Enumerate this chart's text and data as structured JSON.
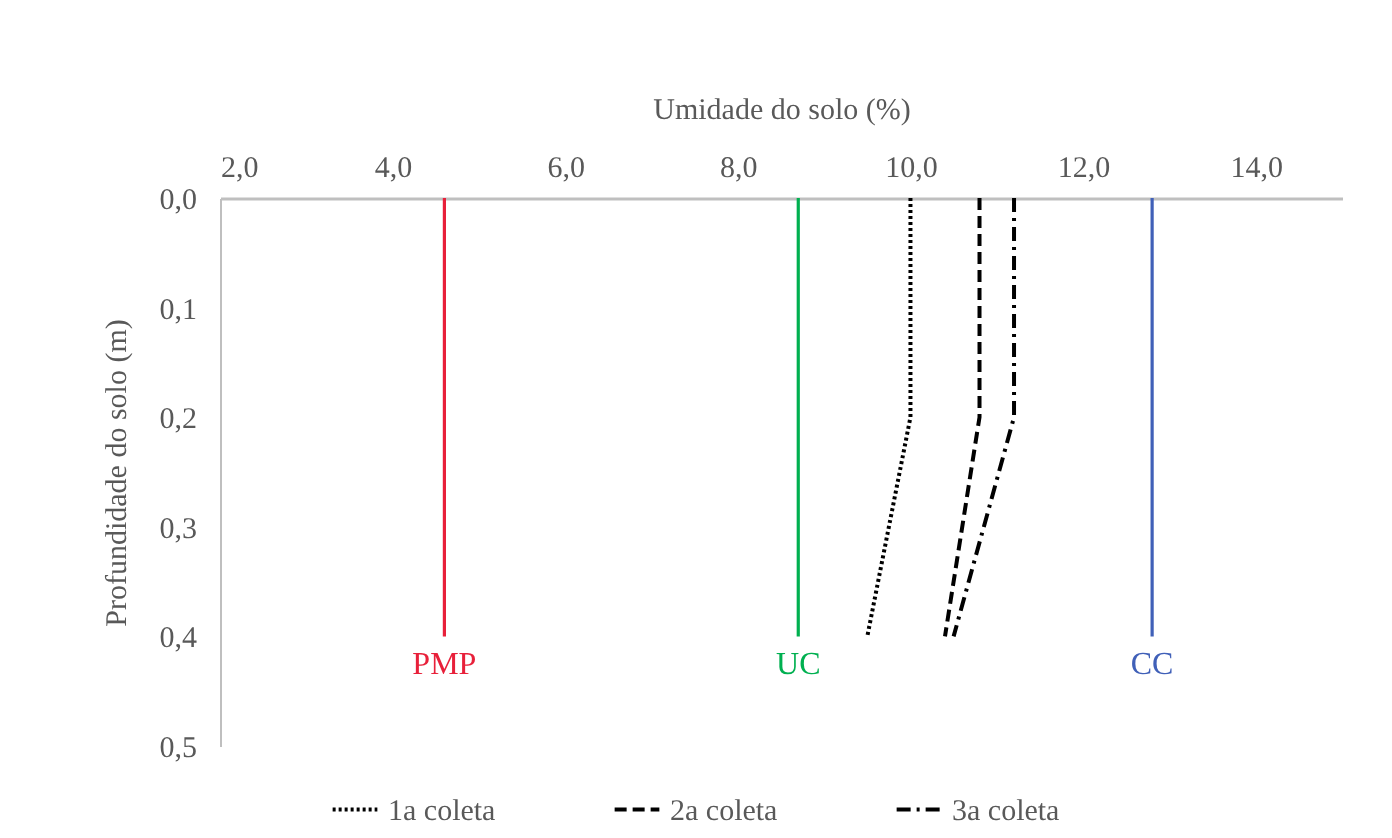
{
  "chart_data": {
    "type": "line",
    "xlabel": "Umidade do solo (%)",
    "ylabel": "Profundidade do solo (m)",
    "xlim": [
      2,
      15
    ],
    "xticks": [
      {
        "value": 2,
        "label": "2,0"
      },
      {
        "value": 4,
        "label": "4,0"
      },
      {
        "value": 6,
        "label": "6,0"
      },
      {
        "value": 8,
        "label": "8,0"
      },
      {
        "value": 10,
        "label": "10,0"
      },
      {
        "value": 12,
        "label": "12,0"
      },
      {
        "value": 14,
        "label": "14,0"
      }
    ],
    "ylim": [
      0.5,
      0
    ],
    "yticks": [
      {
        "value": 0,
        "label": "0,0"
      },
      {
        "value": 0.1,
        "label": "0,1"
      },
      {
        "value": 0.2,
        "label": "0,2"
      },
      {
        "value": 0.3,
        "label": "0,3"
      },
      {
        "value": 0.4,
        "label": "0,4"
      },
      {
        "value": 0.5,
        "label": "0,5"
      }
    ],
    "series": [
      {
        "name": "PMP",
        "color": "#e8203a",
        "line_style": "solid",
        "x": [
          4.6,
          4.6
        ],
        "values": [
          0,
          0.4
        ]
      },
      {
        "name": "UC",
        "color": "#00b050",
        "line_style": "solid",
        "x": [
          8.7,
          8.7
        ],
        "values": [
          0,
          0.4
        ]
      },
      {
        "name": "CC",
        "color": "#4060b8",
        "line_style": "solid",
        "x": [
          12.8,
          12.8
        ],
        "values": [
          0,
          0.4
        ]
      },
      {
        "name": "1a coleta",
        "color": "#000000",
        "line_style": "dotted",
        "x": [
          10.0,
          10.0,
          9.5
        ],
        "values": [
          0,
          0.2,
          0.4
        ]
      },
      {
        "name": "2a coleta",
        "color": "#000000",
        "line_style": "dashed",
        "x": [
          10.8,
          10.8,
          10.4
        ],
        "values": [
          0,
          0.2,
          0.4
        ]
      },
      {
        "name": "3a coleta",
        "color": "#000000",
        "line_style": "dashdot",
        "x": [
          11.2,
          11.2,
          10.5
        ],
        "values": [
          0,
          0.2,
          0.4
        ]
      }
    ],
    "legend": "bottom",
    "grid": false,
    "marker": "none"
  }
}
